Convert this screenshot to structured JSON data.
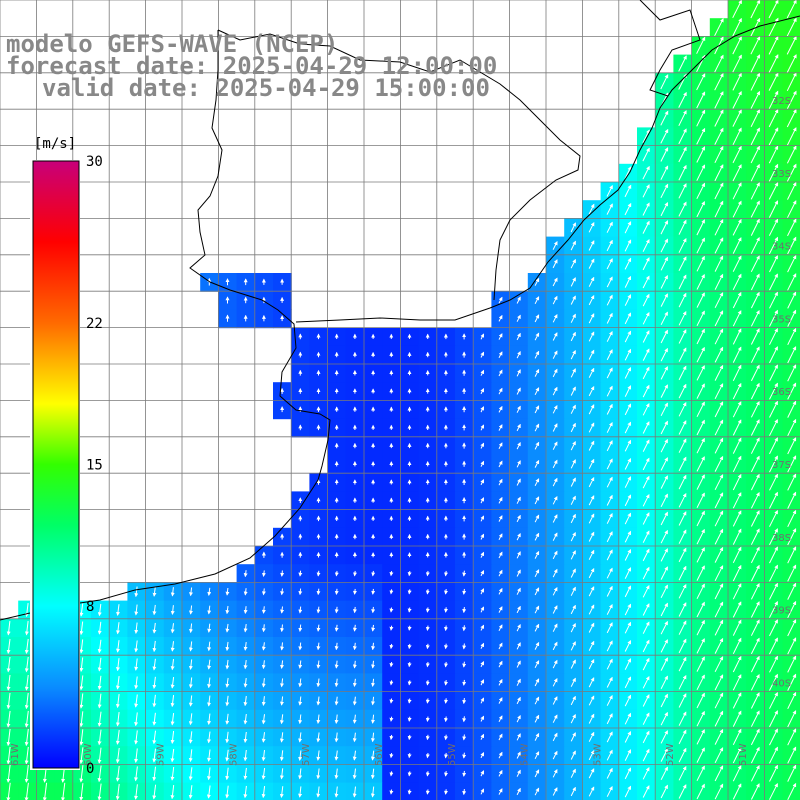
{
  "title": {
    "model": "modelo GEFS-WAVE (NCEP)",
    "forecast": "forecast date: 2025-04-29 12:00:00",
    "valid": "valid date: 2025-04-29 15:00:00"
  },
  "colorbar": {
    "unit": "[m/s]",
    "min": 0,
    "max": 30,
    "labels": [
      "30",
      "22",
      "15",
      "8",
      "0"
    ],
    "label_values": [
      30,
      22,
      15,
      8,
      0
    ],
    "stops": [
      {
        "value": 0,
        "color": "#0000ff"
      },
      {
        "value": 4,
        "color": "#0a8cff"
      },
      {
        "value": 8,
        "color": "#00ffff"
      },
      {
        "value": 12,
        "color": "#00ff66"
      },
      {
        "value": 15,
        "color": "#33ff00"
      },
      {
        "value": 18,
        "color": "#ffff00"
      },
      {
        "value": 22,
        "color": "#ff6a00"
      },
      {
        "value": 26,
        "color": "#ff0000"
      },
      {
        "value": 30,
        "color": "#c8007a"
      }
    ]
  },
  "chart_data": {
    "type": "heatmap",
    "variable": "wind speed and direction",
    "unit": "m/s",
    "lon_labels": [
      "61W",
      "60W",
      "59W",
      "58W",
      "57W",
      "56W",
      "55W",
      "54W",
      "53W",
      "52W",
      "51W"
    ],
    "lat_labels": [
      "32S",
      "33S",
      "34S",
      "35S",
      "36S",
      "37S",
      "38S",
      "39S",
      "40S"
    ]
  }
}
